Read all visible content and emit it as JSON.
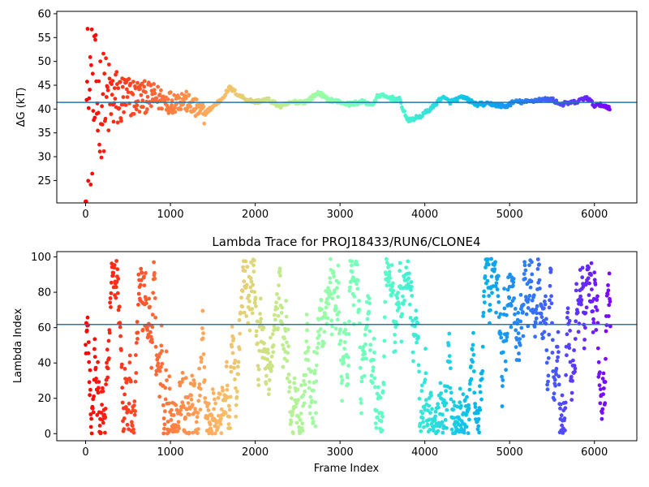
{
  "chart_data": [
    {
      "type": "scatter",
      "title": "",
      "xlabel": "",
      "ylabel": "ΔG (kT)",
      "xlim": [
        -340,
        6500
      ],
      "ylim": [
        20.3,
        60.5
      ],
      "xticks": [
        0,
        1000,
        2000,
        3000,
        4000,
        5000,
        6000
      ],
      "yticks": [
        25,
        30,
        35,
        40,
        45,
        50,
        55,
        60
      ],
      "hline": 41.4,
      "hline_color": "#1f77b4",
      "colormap": "rainbow (red at frame 0 to violet at last frame)",
      "n_frames": 6200,
      "trace_points": [
        [
          0,
          40
        ],
        [
          100,
          41
        ],
        [
          200,
          41.5
        ],
        [
          400,
          42
        ],
        [
          600,
          42.5
        ],
        [
          800,
          42.5
        ],
        [
          1000,
          41.5
        ],
        [
          1150,
          42
        ],
        [
          1300,
          40
        ],
        [
          1400,
          39
        ],
        [
          1500,
          40.5
        ],
        [
          1600,
          42
        ],
        [
          1700,
          44.5
        ],
        [
          1800,
          43
        ],
        [
          1900,
          42
        ],
        [
          2000,
          41.5
        ],
        [
          2150,
          42
        ],
        [
          2300,
          40.5
        ],
        [
          2450,
          41.5
        ],
        [
          2600,
          41.5
        ],
        [
          2750,
          43.5
        ],
        [
          2850,
          42
        ],
        [
          3000,
          41.5
        ],
        [
          3100,
          41
        ],
        [
          3250,
          41.5
        ],
        [
          3400,
          41
        ],
        [
          3450,
          43
        ],
        [
          3550,
          42.5
        ],
        [
          3700,
          42
        ],
        [
          3800,
          37.5
        ],
        [
          3950,
          38.5
        ],
        [
          4100,
          40.5
        ],
        [
          4200,
          42.5
        ],
        [
          4300,
          41.5
        ],
        [
          4450,
          42.5
        ],
        [
          4600,
          41
        ],
        [
          4800,
          41
        ],
        [
          4950,
          40.5
        ],
        [
          5050,
          41.5
        ],
        [
          5200,
          41.5
        ],
        [
          5350,
          42
        ],
        [
          5500,
          42
        ],
        [
          5600,
          41
        ],
        [
          5800,
          41.5
        ],
        [
          5900,
          42.5
        ],
        [
          6000,
          40.8
        ],
        [
          6100,
          40.8
        ],
        [
          6180,
          40.3
        ]
      ]
    },
    {
      "type": "scatter",
      "title": "Lambda Trace for PROJ18433/RUN6/CLONE4",
      "xlabel": "Frame Index",
      "ylabel": "Lambda Index",
      "xlim": [
        -340,
        6500
      ],
      "ylim": [
        -4,
        103
      ],
      "xticks": [
        0,
        1000,
        2000,
        3000,
        4000,
        5000,
        6000
      ],
      "yticks": [
        0,
        20,
        40,
        60,
        80,
        100
      ],
      "hline": 61.8,
      "hline_color": "#1f77b4",
      "colormap": "rainbow (red at frame 0 to violet at last frame)",
      "n_frames": 6200,
      "value_range": [
        0,
        99
      ]
    }
  ]
}
